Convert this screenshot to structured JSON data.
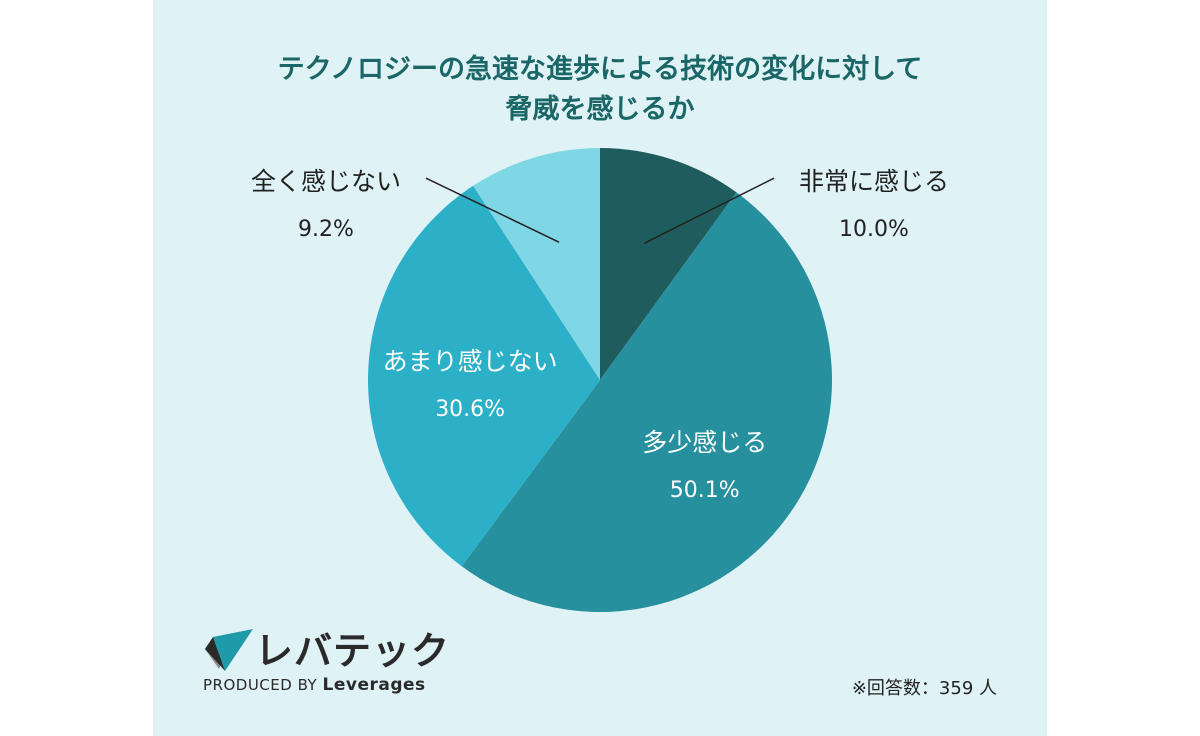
{
  "colors": {
    "panel_bg": "#dff2f6",
    "title_text": "#1b6666",
    "text_dark": "#222222",
    "text_light": "#ffffff",
    "leader_line": "#222222",
    "logo_dark": "#2a2a2a",
    "logo_teal": "#1f9aa8",
    "logo_gray": "#8c8c8c"
  },
  "chart_data": {
    "type": "pie",
    "title_lines": [
      "テクノロジーの急速な進歩による技術の変化に対して",
      "脅威を感じるか"
    ],
    "start_angle_deg": 0,
    "direction": "clockwise",
    "slices": [
      {
        "label": "非常に感じる",
        "value": 10.0,
        "value_label": "10.0%",
        "color": "#1f5c5e",
        "label_placement": "outside-right"
      },
      {
        "label": "多少感じる",
        "value": 50.1,
        "value_label": "50.1%",
        "color": "#27909e",
        "label_placement": "inside"
      },
      {
        "label": "あまり感じない",
        "value": 30.6,
        "value_label": "30.6%",
        "color": "#2bb0c7",
        "label_placement": "inside"
      },
      {
        "label": "全く感じない",
        "value": 9.2,
        "value_label": "9.2%",
        "color": "#7fd7e6",
        "label_placement": "outside-left"
      }
    ]
  },
  "logo": {
    "name": "レバテック",
    "produced_by": "PRODUCED BY",
    "company": "Leverages"
  },
  "footnote": "※回答数：359 人"
}
